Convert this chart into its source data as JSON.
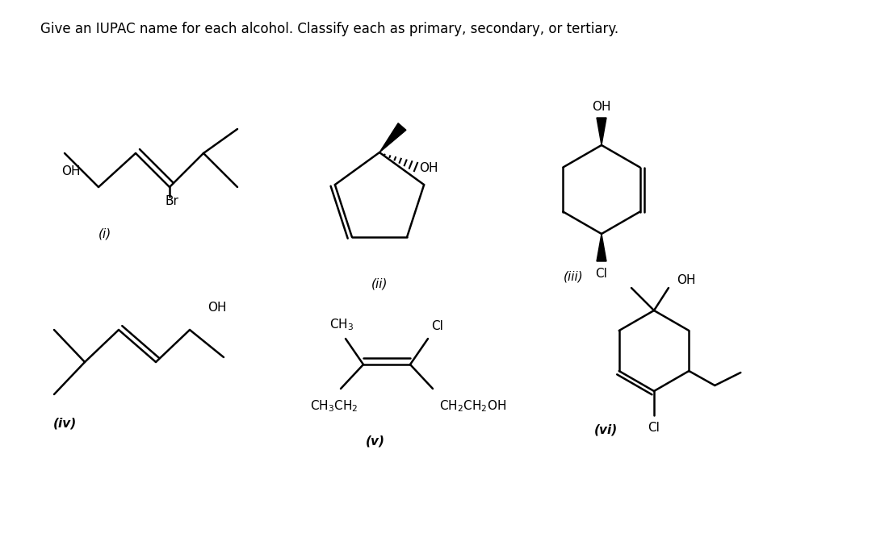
{
  "title": "Give an IUPAC name for each alcohol. Classify each as primary, secondary, or tertiary.",
  "background_color": "#ffffff",
  "text_color": "#000000",
  "labels": [
    "(i)",
    "(ii)",
    "(iii)",
    "(iv)",
    "(v)",
    "(vi)"
  ],
  "figsize": [
    10.8,
    6.87
  ],
  "dpi": 100
}
